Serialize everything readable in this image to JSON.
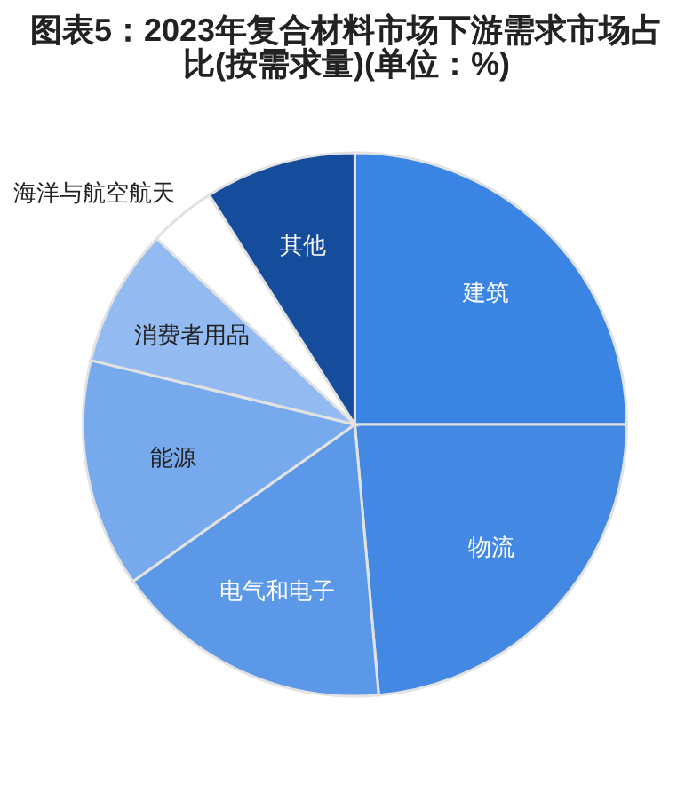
{
  "chart_data": {
    "type": "pie",
    "title": "图表5：2023年复合材料市场下游需求市场占比(按需求量)(单位：%)",
    "categories": [
      "建筑",
      "物流",
      "电气和电子",
      "能源",
      "消费者用品",
      "海洋与航空航天",
      "其他"
    ],
    "values": [
      25,
      23.6,
      16.6,
      13.6,
      8.2,
      4,
      9
    ],
    "colors": [
      "#3a84e4",
      "#4388e2",
      "#5b98e7",
      "#77aaec",
      "#93baf1",
      "#ffffff",
      "#154c9c"
    ]
  }
}
